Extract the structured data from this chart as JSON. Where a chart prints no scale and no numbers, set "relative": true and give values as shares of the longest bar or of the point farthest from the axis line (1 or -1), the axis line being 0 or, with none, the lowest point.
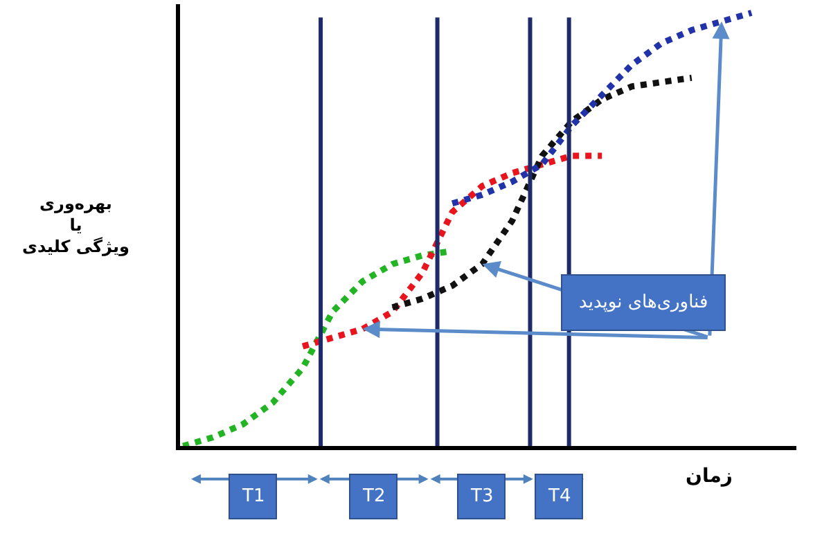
{
  "chart_data": {
    "type": "line",
    "relative": true,
    "xlabel": "زمان",
    "ylabel": "بهره‌وری\nیا\nویژگی کلیدی",
    "marker": "none",
    "line_style": "dotted",
    "annotations": [
      "فناوری‌های نوپدید",
      "T1",
      "T2",
      "T3",
      "T4"
    ],
    "categories": [
      null,
      null,
      null,
      null,
      null,
      null,
      null,
      null,
      null,
      null,
      null,
      null,
      null,
      null,
      null,
      null,
      null,
      null,
      null,
      null,
      null
    ],
    "series": [
      {
        "color": "#22b422",
        "values": [
          0,
          0.02,
          0.05,
          0.1,
          0.18,
          0.31,
          0.38,
          0.42,
          0.44,
          0.45,
          null,
          null,
          null,
          null,
          null,
          null,
          null,
          null,
          null,
          null,
          null
        ]
      },
      {
        "color": "#e8141e",
        "values": [
          null,
          null,
          null,
          null,
          0.23,
          0.25,
          0.27,
          0.31,
          0.4,
          0.54,
          0.6,
          0.63,
          0.65,
          0.67,
          0.67,
          null,
          null,
          null,
          null,
          null,
          null
        ]
      },
      {
        "color": "#111111",
        "values": [
          null,
          null,
          null,
          null,
          null,
          null,
          null,
          0.32,
          0.34,
          0.37,
          0.42,
          0.52,
          0.67,
          0.75,
          0.8,
          0.83,
          0.84,
          0.85,
          null,
          null,
          null
        ]
      },
      {
        "color": "#2233aa",
        "values": [
          null,
          null,
          null,
          null,
          null,
          null,
          null,
          null,
          null,
          0.56,
          0.58,
          0.61,
          0.65,
          0.74,
          0.81,
          0.88,
          0.93,
          0.96,
          0.98,
          1,
          null
        ]
      }
    ]
  }
}
